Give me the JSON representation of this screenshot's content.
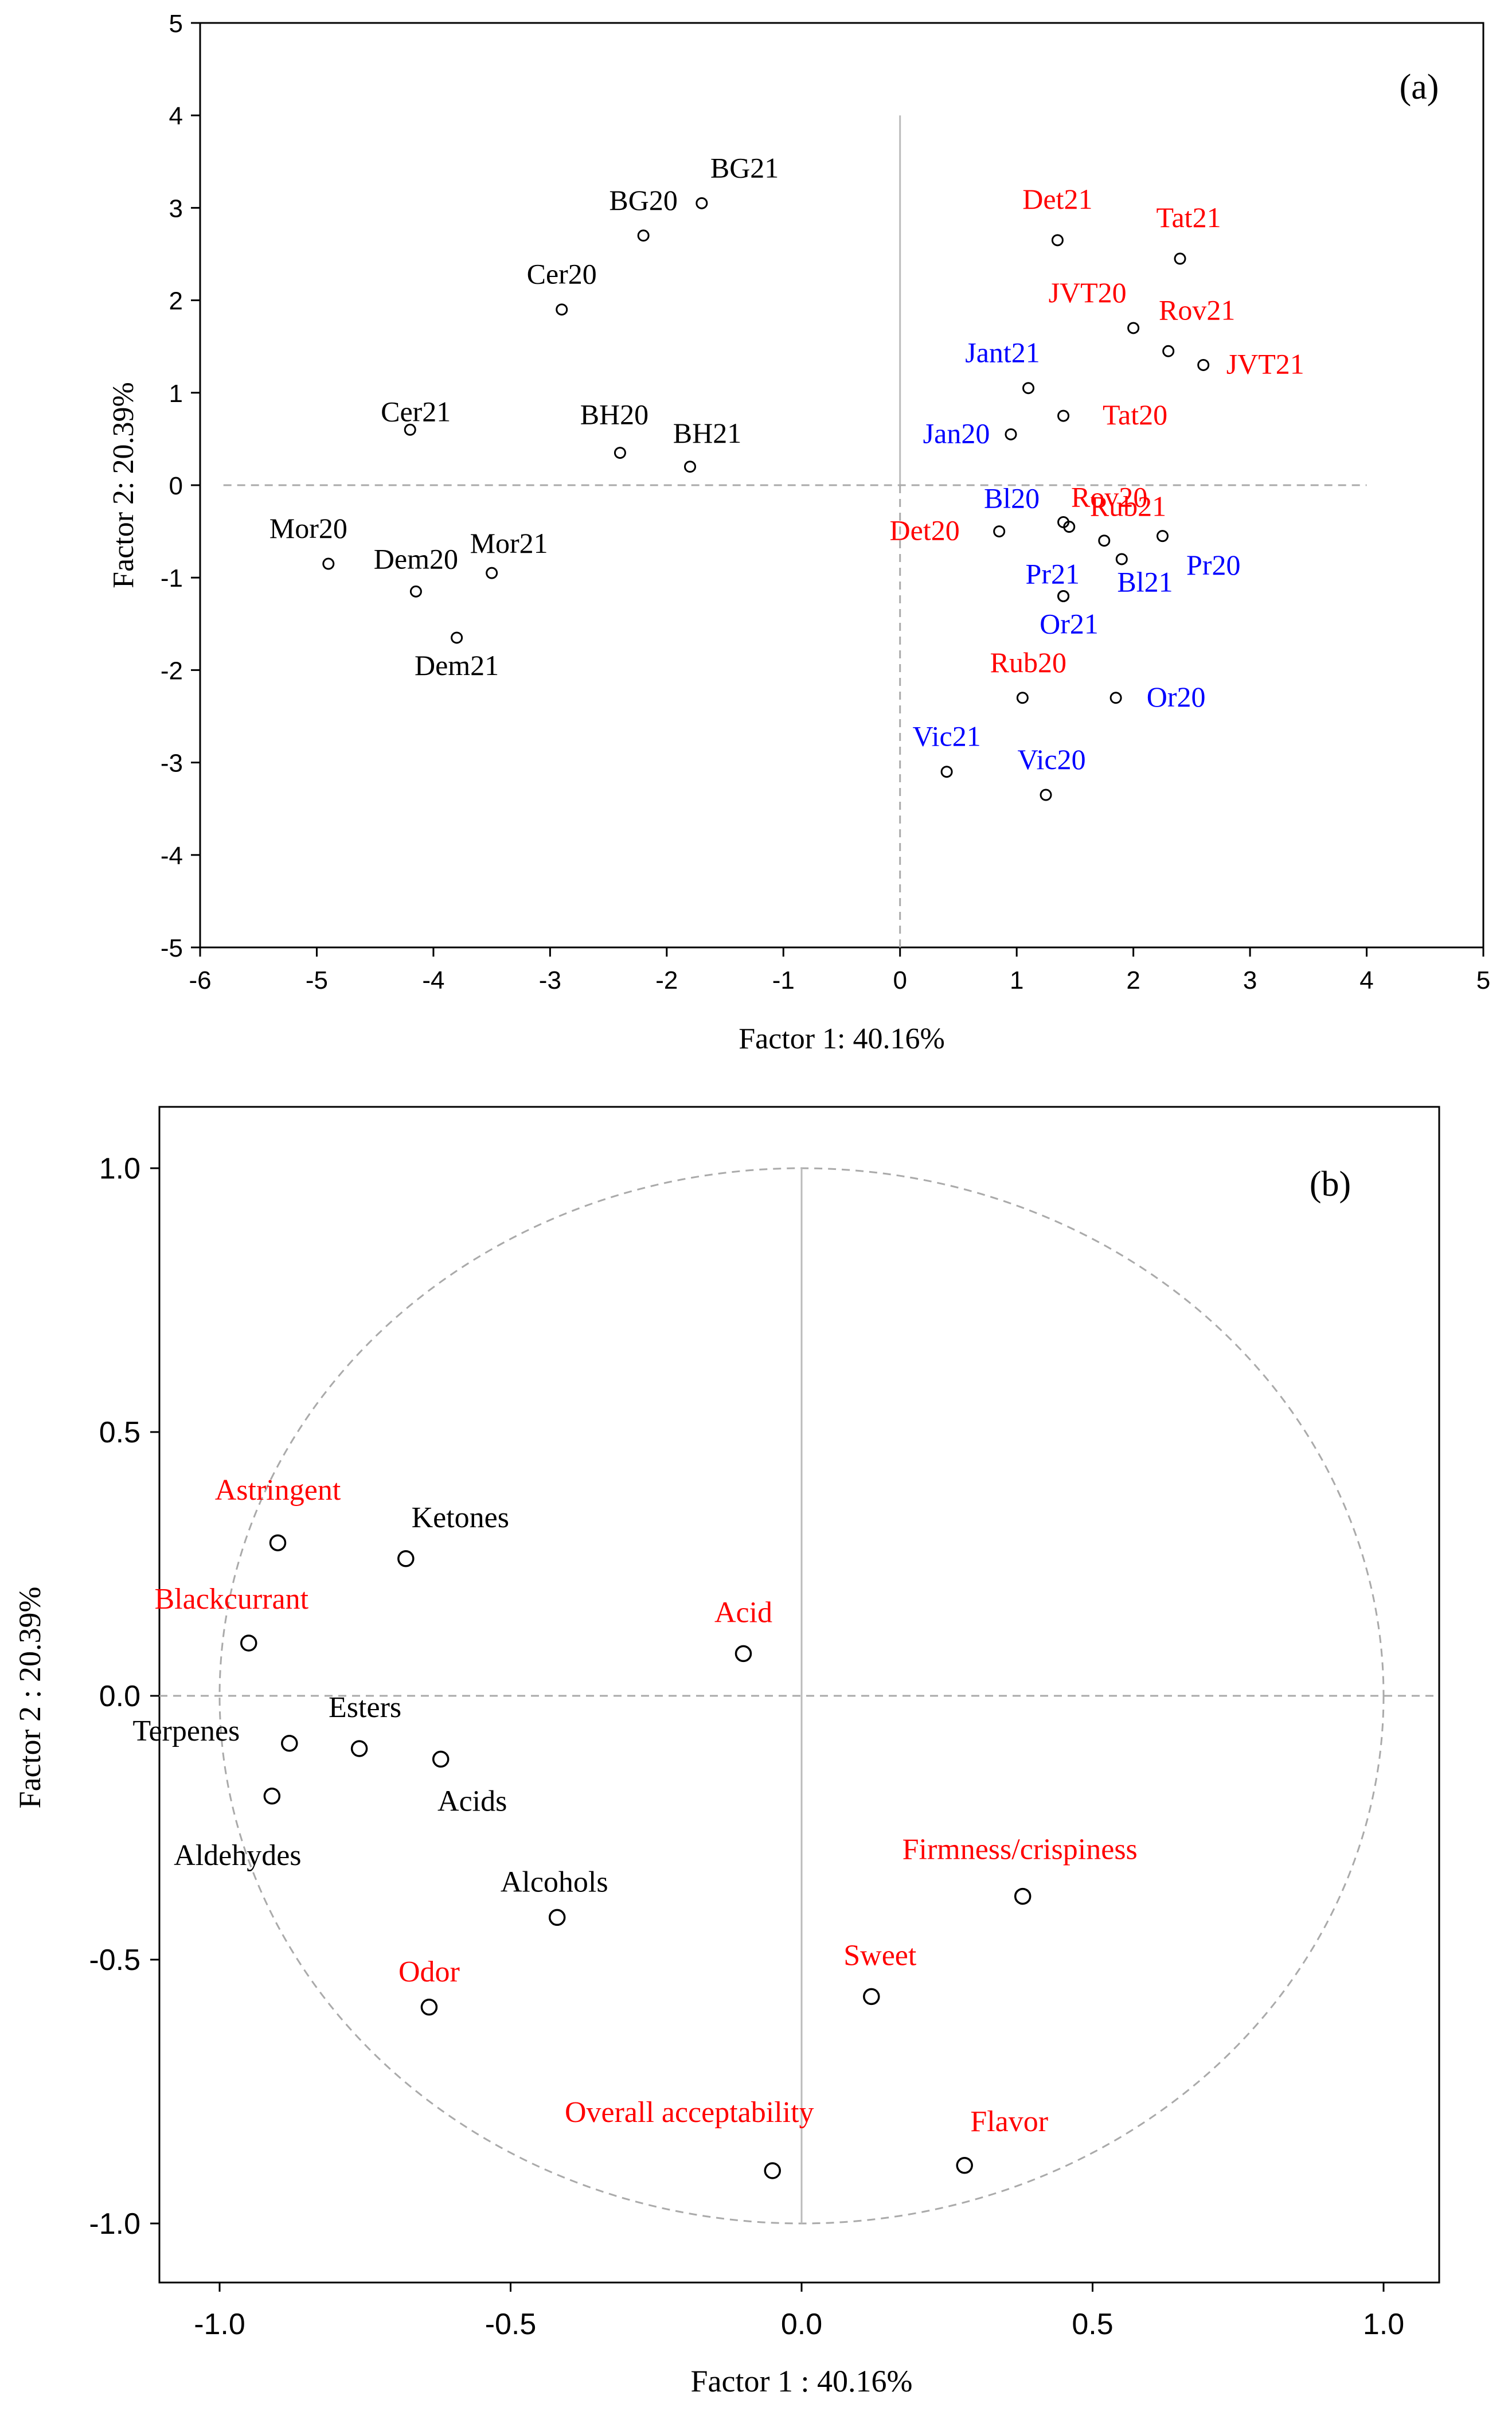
{
  "colors": {
    "black": "#000000",
    "red": "#ff0000",
    "blue": "#0000ff",
    "dashed_gray": "#aaaaaa",
    "solid_gray": "#bbbbbb"
  },
  "chart_data": [
    {
      "type": "scatter",
      "panel_label": "(a)",
      "xlabel": "Factor 1: 40.16%",
      "ylabel": "Factor 2: 20.39%",
      "xlim": [
        -6,
        5
      ],
      "ylim": [
        -5,
        5
      ],
      "xticks": [
        -6,
        -5,
        -4,
        -3,
        -2,
        -1,
        0,
        1,
        2,
        3,
        4,
        5
      ],
      "yticks": [
        -5,
        -4,
        -3,
        -2,
        -1,
        0,
        1,
        2,
        3,
        4,
        5
      ],
      "points": [
        {
          "label": "BG21",
          "x": -1.7,
          "y": 3.05,
          "color": "black"
        },
        {
          "label": "BG20",
          "x": -2.2,
          "y": 2.7,
          "color": "black"
        },
        {
          "label": "Cer20",
          "x": -2.9,
          "y": 1.9,
          "color": "black"
        },
        {
          "label": "Cer21",
          "x": -4.2,
          "y": 0.6,
          "color": "black"
        },
        {
          "label": "BH20",
          "x": -2.4,
          "y": 0.35,
          "color": "black"
        },
        {
          "label": "BH21",
          "x": -1.8,
          "y": 0.2,
          "color": "black"
        },
        {
          "label": "Mor20",
          "x": -4.9,
          "y": -0.85,
          "color": "black"
        },
        {
          "label": "Mor21",
          "x": -3.5,
          "y": -0.95,
          "color": "black"
        },
        {
          "label": "Dem20",
          "x": -4.15,
          "y": -1.15,
          "color": "black"
        },
        {
          "label": "Dem21",
          "x": -3.8,
          "y": -1.65,
          "color": "black"
        },
        {
          "label": "Det21",
          "x": 1.35,
          "y": 2.65,
          "color": "red"
        },
        {
          "label": "Tat21",
          "x": 2.4,
          "y": 2.45,
          "color": "red"
        },
        {
          "label": "JVT20",
          "x": 2.0,
          "y": 1.7,
          "color": "red"
        },
        {
          "label": "Rov21",
          "x": 2.3,
          "y": 1.45,
          "color": "red"
        },
        {
          "label": "JVT21",
          "x": 2.6,
          "y": 1.3,
          "color": "red"
        },
        {
          "label": "Jant21",
          "x": 1.1,
          "y": 1.05,
          "color": "blue"
        },
        {
          "label": "Tat20",
          "x": 1.4,
          "y": 0.75,
          "color": "red"
        },
        {
          "label": "Jan20",
          "x": 0.95,
          "y": 0.55,
          "color": "blue"
        },
        {
          "label": "Rov20",
          "x": 1.45,
          "y": -0.45,
          "color": "red"
        },
        {
          "label": "Bl20",
          "x": 1.4,
          "y": -0.4,
          "color": "blue"
        },
        {
          "label": "Rub21",
          "x": 2.25,
          "y": -0.55,
          "color": "red"
        },
        {
          "label": "Det20",
          "x": 0.85,
          "y": -0.5,
          "color": "red"
        },
        {
          "label": "Pr21",
          "x": 1.75,
          "y": -0.6,
          "color": "blue"
        },
        {
          "label": "Pr20",
          "x": 1.9,
          "y": -0.8,
          "color": "blue"
        },
        {
          "label": "Bl21",
          "x": 1.4,
          "y": -1.2,
          "color": "blue"
        },
        {
          "label": "Or21",
          "x": 1.4,
          "y": -1.2,
          "color": "blue"
        },
        {
          "label": "Rub20",
          "x": 1.05,
          "y": -2.3,
          "color": "red"
        },
        {
          "label": "Or20",
          "x": 1.85,
          "y": -2.3,
          "color": "blue"
        },
        {
          "label": "Vic21",
          "x": 0.4,
          "y": -3.1,
          "color": "blue"
        },
        {
          "label": "Vic20",
          "x": 1.25,
          "y": -3.35,
          "color": "blue"
        }
      ]
    },
    {
      "type": "scatter",
      "panel_label": "(b)",
      "xlabel": "Factor 1 : 40.16%",
      "ylabel": "Factor 2 : 20.39%",
      "xlim": [
        -1.1,
        1.1
      ],
      "ylim": [
        -1.1,
        1.1
      ],
      "xticks": [
        "-1.0",
        "-0.5",
        "0.0",
        "0.5",
        "1.0"
      ],
      "yticks": [
        "1.0",
        "0.5",
        "0.0",
        "-0.5",
        "-1.0"
      ],
      "unit_circle": true,
      "points": [
        {
          "label": "Astringent",
          "x": -0.9,
          "y": 0.29,
          "color": "red"
        },
        {
          "label": "Ketones",
          "x": -0.68,
          "y": 0.26,
          "color": "black"
        },
        {
          "label": "Blackcurrant",
          "x": -0.95,
          "y": 0.1,
          "color": "red"
        },
        {
          "label": "Acid",
          "x": -0.1,
          "y": 0.08,
          "color": "red"
        },
        {
          "label": "Esters",
          "x": -0.76,
          "y": -0.1,
          "color": "black"
        },
        {
          "label": "Terpenes",
          "x": -0.88,
          "y": -0.09,
          "color": "black"
        },
        {
          "label": "Acids",
          "x": -0.62,
          "y": -0.12,
          "color": "black"
        },
        {
          "label": "Aldehydes",
          "x": -0.91,
          "y": -0.19,
          "color": "black"
        },
        {
          "label": "Alcohols",
          "x": -0.42,
          "y": -0.42,
          "color": "black"
        },
        {
          "label": "Firmness/crispiness",
          "x": 0.38,
          "y": -0.38,
          "color": "red"
        },
        {
          "label": "Sweet",
          "x": 0.12,
          "y": -0.57,
          "color": "red"
        },
        {
          "label": "Odor",
          "x": -0.64,
          "y": -0.59,
          "color": "red"
        },
        {
          "label": "Overall acceptability",
          "x": -0.05,
          "y": -0.9,
          "color": "red"
        },
        {
          "label": "Flavor",
          "x": 0.28,
          "y": -0.89,
          "color": "red"
        }
      ]
    }
  ]
}
